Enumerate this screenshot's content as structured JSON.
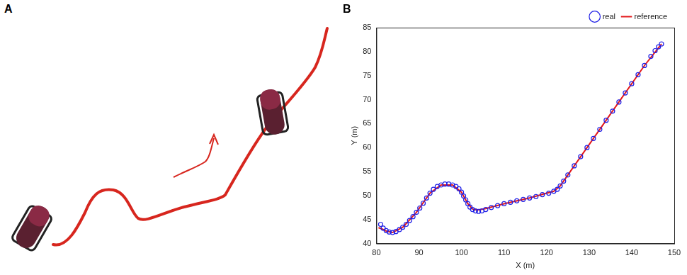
{
  "panel_labels": [
    "A",
    "B"
  ],
  "chart_data": {
    "type": "scatter",
    "x_label": "X (m)",
    "y_label": "Y (m)",
    "xlim": [
      80,
      150
    ],
    "xticks": [
      80,
      90,
      100,
      110,
      120,
      130,
      140,
      150
    ],
    "ylim": [
      40,
      85
    ],
    "yticks": [
      40,
      45,
      50,
      55,
      60,
      65,
      70,
      75,
      80,
      85
    ],
    "grid": false,
    "legend": "top-right",
    "series": [
      {
        "name": "reference",
        "color": "#e31a1c",
        "marker": "none",
        "line_style": "solid",
        "x": [
          80.5,
          81.5,
          82.3,
          83.8,
          86.2,
          89.4,
          92.6,
          95.2,
          97.9,
          100,
          101.5,
          102.6,
          103.6,
          104.6,
          105.7,
          110,
          116,
          121.7,
          123.2,
          125,
          131,
          137,
          143,
          147
        ],
        "values": [
          43.3,
          43,
          42.6,
          42.3,
          43.4,
          46.5,
          50.5,
          52.2,
          52.2,
          50.7,
          48.3,
          47.2,
          47,
          47.1,
          47.3,
          48.3,
          49.5,
          50.9,
          52,
          54.3,
          61.9,
          69.5,
          77.1,
          81.6
        ]
      },
      {
        "name": "real",
        "color": "#1f1fe6",
        "marker": "circle",
        "line_style": "none",
        "x": [
          81,
          81.6,
          82.3,
          83,
          83.8,
          84.6,
          85.4,
          86.2,
          87,
          87.8,
          88.6,
          89.4,
          90.2,
          91,
          91.8,
          92.6,
          93.4,
          94.3,
          95.2,
          96.1,
          97,
          97.9,
          98.7,
          99.4,
          100,
          100.5,
          101,
          101.5,
          102,
          102.6,
          103.3,
          104,
          104.8,
          105.7,
          107,
          108.5,
          110,
          111.5,
          113,
          114.5,
          116,
          117.5,
          119,
          120.5,
          121.7,
          122.5,
          123.2,
          124,
          125,
          126.5,
          128,
          129.5,
          131,
          132.5,
          134,
          135.5,
          137,
          138.5,
          140,
          141.5,
          143,
          144.5,
          145.5,
          146.3,
          147
        ],
        "values": [
          44,
          43.2,
          42.7,
          42.4,
          42.3,
          42.5,
          42.9,
          43.4,
          44,
          44.8,
          45.6,
          46.5,
          47.4,
          48.4,
          49.5,
          50.5,
          51.3,
          51.9,
          52.2,
          52.4,
          52.4,
          52.2,
          51.9,
          51.4,
          50.7,
          49.9,
          49.1,
          48.3,
          47.6,
          47.1,
          46.8,
          46.7,
          46.8,
          47.1,
          47.5,
          47.9,
          48.3,
          48.6,
          48.9,
          49.2,
          49.5,
          49.8,
          50.2,
          50.5,
          50.9,
          51.3,
          52,
          53,
          54.3,
          56.2,
          58.1,
          60,
          61.9,
          63.8,
          65.7,
          67.6,
          69.5,
          71.4,
          73.3,
          75.2,
          77.1,
          79,
          80.2,
          81,
          81.6
        ]
      }
    ]
  }
}
